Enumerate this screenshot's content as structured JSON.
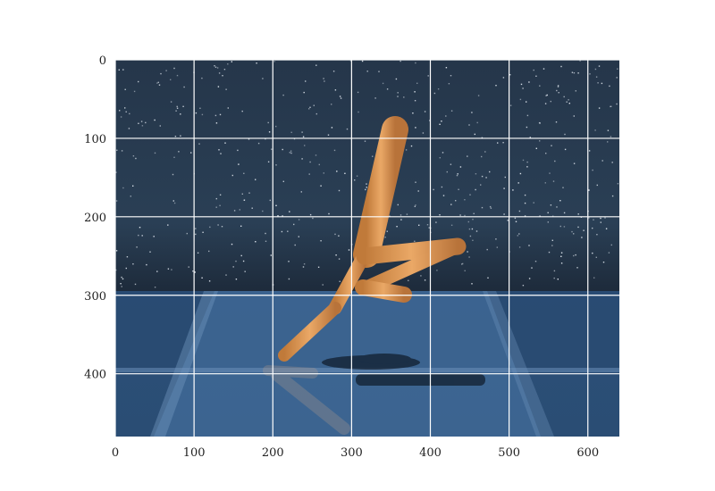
{
  "figure": {
    "x_ticks": [
      "0",
      "100",
      "200",
      "300",
      "400",
      "500",
      "600"
    ],
    "y_ticks": [
      "0",
      "100",
      "200",
      "300",
      "400"
    ],
    "x_range": [
      0,
      640
    ],
    "y_range": [
      0,
      480
    ],
    "grid": true,
    "y_axis_inverted": true
  },
  "scene": {
    "type": "mujoco-walker-render",
    "sky_color": "#243548",
    "floor_color": "#2f5278",
    "body_color": "#e5a060"
  }
}
